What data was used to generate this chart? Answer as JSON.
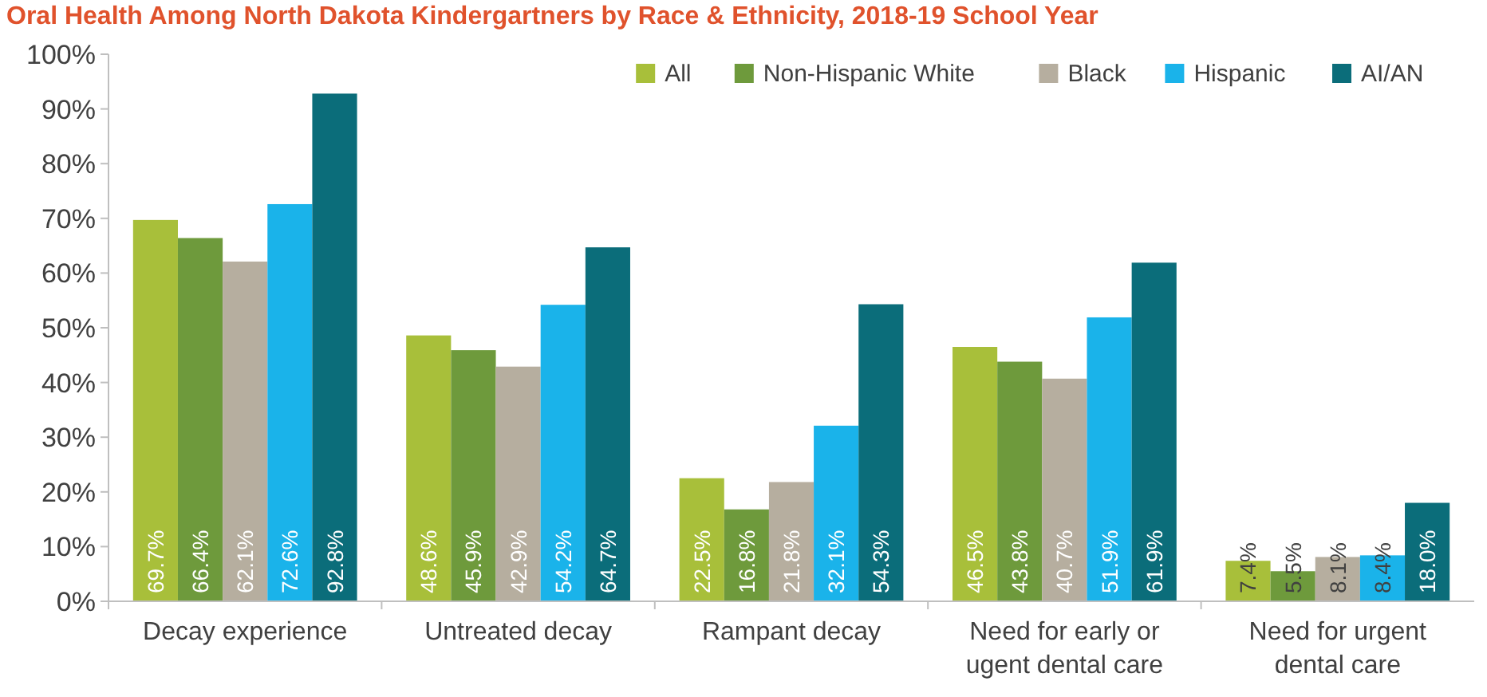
{
  "chart_data": {
    "type": "bar",
    "title": "Oral Health Among North Dakota Kindergartners by Race & Ethnicity, 2018-19 School Year",
    "categories": [
      "Decay experience",
      "Untreated decay",
      "Rampant decay",
      "Need for early or ugent dental care",
      "Need for urgent dental care"
    ],
    "series": [
      {
        "name": "All",
        "color": "#a8bf3a",
        "values": [
          69.7,
          48.6,
          22.5,
          46.5,
          7.4
        ],
        "value_labels": [
          "69.7%",
          "48.6%",
          "22.5%",
          "46.5%",
          "7.4%"
        ]
      },
      {
        "name": "Non-Hispanic White",
        "color": "#6e9a3c",
        "values": [
          66.4,
          45.9,
          16.8,
          43.8,
          5.5
        ],
        "value_labels": [
          "66.4%",
          "45.9%",
          "16.8%",
          "43.8%",
          "5.5%"
        ]
      },
      {
        "name": "Black",
        "color": "#b6ae9f",
        "values": [
          62.1,
          42.9,
          21.8,
          40.7,
          8.1
        ],
        "value_labels": [
          "62.1%",
          "42.9%",
          "21.8%",
          "40.7%",
          "8.1%"
        ]
      },
      {
        "name": "Hispanic",
        "color": "#1ab3ea",
        "values": [
          72.6,
          54.2,
          32.1,
          51.9,
          8.4
        ],
        "value_labels": [
          "72.6%",
          "54.2%",
          "32.1%",
          "51.9%",
          "8.4%"
        ]
      },
      {
        "name": "AI/AN",
        "color": "#0b6d7a",
        "values": [
          92.8,
          64.7,
          54.3,
          61.9,
          18.0
        ],
        "value_labels": [
          "92.8%",
          "64.7%",
          "54.3%",
          "61.9%",
          "18.0%"
        ]
      }
    ],
    "ylim": [
      0,
      100
    ],
    "yticks": [
      {
        "value": 0,
        "label": "0%"
      },
      {
        "value": 10,
        "label": "10%"
      },
      {
        "value": 20,
        "label": "20%"
      },
      {
        "value": 30,
        "label": "30%"
      },
      {
        "value": 40,
        "label": "40%"
      },
      {
        "value": 50,
        "label": "50%"
      },
      {
        "value": 60,
        "label": "60%"
      },
      {
        "value": 70,
        "label": "70%"
      },
      {
        "value": 80,
        "label": "80%"
      },
      {
        "value": 90,
        "label": "90%"
      },
      {
        "value": 100,
        "label": "100%"
      }
    ],
    "legend": "top right",
    "grid": false
  }
}
